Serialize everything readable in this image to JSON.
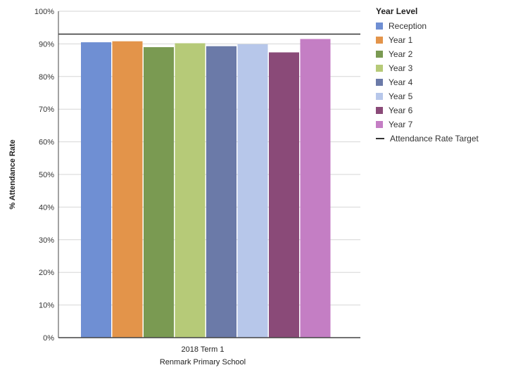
{
  "chart_data": {
    "type": "bar",
    "title": "",
    "ylabel": "% Attendance Rate",
    "xlabel_lines": [
      "2018 Term 1",
      "Renmark Primary School"
    ],
    "ylim": [
      0,
      100
    ],
    "yticks": [
      "0%",
      "10%",
      "20%",
      "30%",
      "40%",
      "50%",
      "60%",
      "70%",
      "80%",
      "90%",
      "100%"
    ],
    "grid": true,
    "legend_position": "right",
    "legend_title": "Year Level",
    "categories": [
      "2018 Term 1"
    ],
    "series": [
      {
        "name": "Reception",
        "values": [
          90.5
        ],
        "color": "#6f8fd3"
      },
      {
        "name": "Year 1",
        "values": [
          90.8
        ],
        "color": "#e3944a"
      },
      {
        "name": "Year 2",
        "values": [
          89.0
        ],
        "color": "#7a9a52"
      },
      {
        "name": "Year 3",
        "values": [
          90.2
        ],
        "color": "#b6ca78"
      },
      {
        "name": "Year 4",
        "values": [
          89.3
        ],
        "color": "#6b7aa8"
      },
      {
        "name": "Year 5",
        "values": [
          89.9
        ],
        "color": "#b7c7ea"
      },
      {
        "name": "Year 6",
        "values": [
          87.4
        ],
        "color": "#8a4a78"
      },
      {
        "name": "Year 7",
        "values": [
          91.5
        ],
        "color": "#c47ec4"
      }
    ],
    "target": {
      "name": "Attendance Rate Target",
      "value": 93,
      "color": "#333333"
    }
  }
}
